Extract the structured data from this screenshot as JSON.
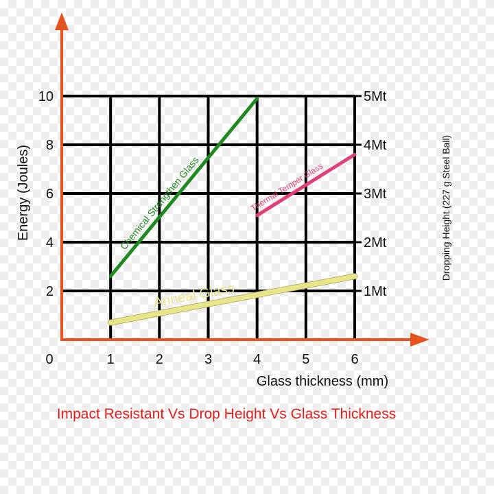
{
  "chart_data": {
    "type": "line",
    "title": "Impact Resistant Vs Drop Height Vs Glass Thickness",
    "xlabel": "Glass thickness (mm)",
    "ylabel": "Energy (Joules)",
    "y2label": "Dropping Height (227 g Steel Ball)",
    "origin_label": "0",
    "xlim": [
      0,
      6
    ],
    "ylim": [
      0,
      10
    ],
    "x_ticks": [
      "1",
      "2",
      "3",
      "4",
      "5",
      "6"
    ],
    "y_ticks": [
      "2",
      "4",
      "6",
      "8",
      "10"
    ],
    "y2_ticks": [
      "1Mt",
      "2Mt",
      "3Mt",
      "4Mt",
      "5Mt"
    ],
    "grid": true,
    "series": [
      {
        "name": "Chemical Strengthen Glass",
        "color": "#1f8a1f",
        "x": [
          1,
          4
        ],
        "y": [
          2.6,
          9.9
        ]
      },
      {
        "name": "Thermal Temper Glass",
        "color": "#e0407a",
        "x": [
          4,
          6
        ],
        "y": [
          5.1,
          7.6
        ]
      },
      {
        "name": "Anneal Glass",
        "color": "#e8e58a",
        "x": [
          1,
          6
        ],
        "y": [
          0.7,
          2.6
        ]
      }
    ]
  }
}
